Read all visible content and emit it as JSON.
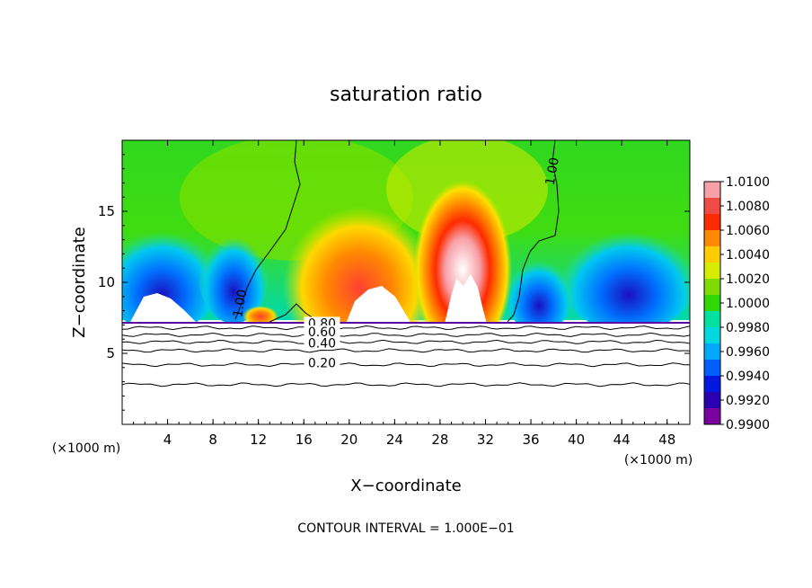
{
  "chart_data": {
    "type": "contour",
    "title": "saturation ratio",
    "xlabel": "X−coordinate",
    "ylabel": "Z−coordinate",
    "x_unit_left": "(×1000 m)",
    "x_unit_right": "(×1000 m)",
    "footer": "CONTOUR INTERVAL = 1.000E−01",
    "xlim": [
      0,
      50
    ],
    "ylim": [
      0,
      20
    ],
    "x_ticks": [
      4,
      8,
      12,
      16,
      20,
      24,
      28,
      32,
      36,
      40,
      44,
      48
    ],
    "x_tick_labels": [
      "4",
      "8",
      "12",
      "16",
      "20",
      "24",
      "28",
      "32",
      "36",
      "40",
      "44",
      "48"
    ],
    "y_ticks": [
      5,
      10,
      15
    ],
    "y_tick_labels": [
      "5",
      "10",
      "15"
    ],
    "colorbar": {
      "labels": [
        "1.0100",
        "1.0080",
        "1.0060",
        "1.0040",
        "1.0020",
        "1.0000",
        "0.9980",
        "0.9960",
        "0.9940",
        "0.9920",
        "0.9900"
      ],
      "colors": [
        "#f7a0a8",
        "#ee4b45",
        "#ff2a00",
        "#ff8a00",
        "#ffcc00",
        "#d6ec00",
        "#7edc00",
        "#2fd800",
        "#00e0a0",
        "#00d8e0",
        "#00a8ff",
        "#0060ff",
        "#0018e0",
        "#2a00b0",
        "#7a00a0"
      ]
    },
    "contour_labels": [
      {
        "text": "1.00",
        "x": 38.0,
        "z": 17.8
      },
      {
        "text": "1.00",
        "x": 10.5,
        "z": 8.5
      },
      {
        "text": "0.80",
        "x": 17.6,
        "z": 7.0
      },
      {
        "text": "0.60",
        "x": 17.6,
        "z": 6.4
      },
      {
        "text": "0.40",
        "x": 17.6,
        "z": 5.6
      },
      {
        "text": "0.20",
        "x": 17.6,
        "z": 4.2
      }
    ],
    "contour_lines_z": [
      2.8,
      4.2,
      5.2,
      5.8,
      6.3,
      6.8
    ]
  }
}
